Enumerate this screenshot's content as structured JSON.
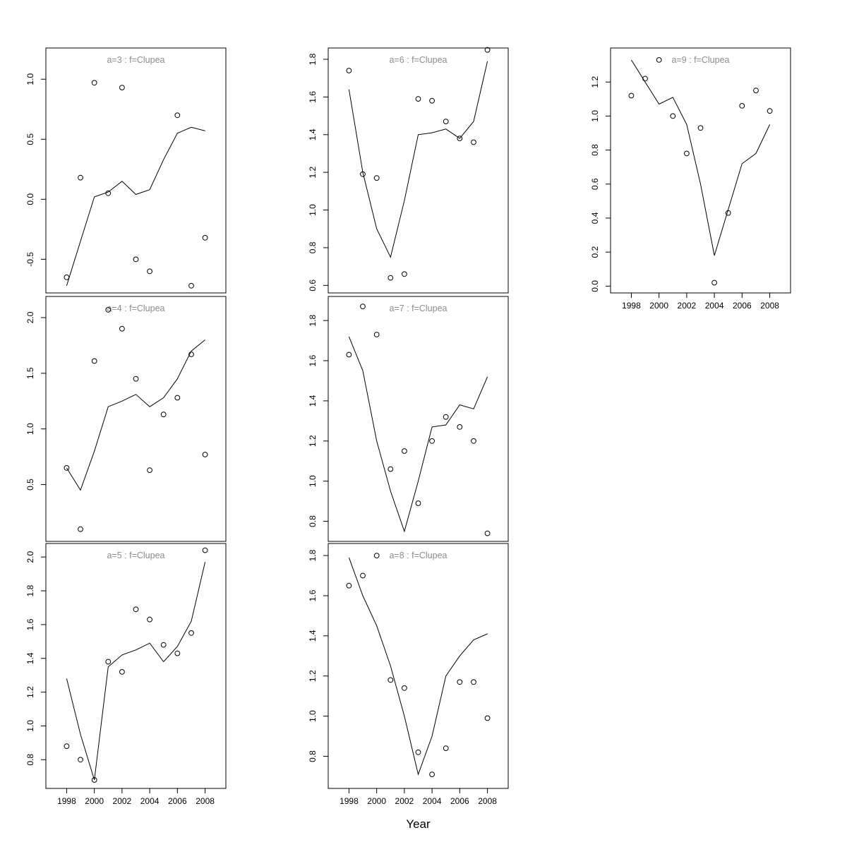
{
  "figure": {
    "xlabel": "Year",
    "title_color": "#8c8c8c",
    "axis_color": "#000000",
    "line_color": "#000000",
    "point_color": "#000000",
    "background": "#ffffff"
  },
  "chart_data": [
    {
      "id": "a3",
      "type": "scatter",
      "title": "a=3 : f=Clupea",
      "grid": {
        "row": 0,
        "col": 0
      },
      "x": [
        1998,
        1999,
        2000,
        2001,
        2002,
        2003,
        2004,
        2005,
        2006,
        2007,
        2008
      ],
      "series": [
        {
          "name": "observed",
          "style": "points",
          "values": [
            -0.65,
            0.18,
            0.97,
            0.05,
            0.93,
            -0.5,
            -0.6,
            null,
            0.7,
            -0.72,
            -0.32
          ]
        },
        {
          "name": "fitted",
          "style": "line",
          "values": [
            -0.72,
            -0.35,
            0.02,
            0.06,
            0.15,
            0.04,
            0.08,
            0.33,
            0.55,
            0.6,
            0.57
          ]
        }
      ],
      "ylim": [
        -0.78,
        1.26
      ],
      "yticks": [
        -0.5,
        0.0,
        0.5,
        1.0
      ],
      "xticks": [
        1998,
        2000,
        2002,
        2004,
        2006,
        2008
      ],
      "x_axis_labels": false
    },
    {
      "id": "a4",
      "type": "scatter",
      "title": "a=4 : f=Clupea",
      "grid": {
        "row": 1,
        "col": 0
      },
      "x": [
        1998,
        1999,
        2000,
        2001,
        2002,
        2003,
        2004,
        2005,
        2006,
        2007,
        2008
      ],
      "series": [
        {
          "name": "observed",
          "style": "points",
          "values": [
            0.65,
            0.1,
            1.61,
            2.07,
            1.9,
            1.45,
            0.63,
            1.13,
            1.28,
            1.67,
            0.77
          ]
        },
        {
          "name": "fitted",
          "style": "line",
          "values": [
            0.65,
            0.45,
            0.8,
            1.2,
            1.25,
            1.31,
            1.2,
            1.28,
            1.45,
            1.7,
            1.8
          ]
        }
      ],
      "ylim": [
        -0.01,
        2.19
      ],
      "yticks": [
        0.5,
        1.0,
        1.5,
        2.0
      ],
      "xticks": [
        1998,
        2000,
        2002,
        2004,
        2006,
        2008
      ],
      "x_axis_labels": false
    },
    {
      "id": "a5",
      "type": "scatter",
      "title": "a=5 : f=Clupea",
      "grid": {
        "row": 2,
        "col": 0
      },
      "x": [
        1998,
        1999,
        2000,
        2001,
        2002,
        2003,
        2004,
        2005,
        2006,
        2007,
        2008
      ],
      "series": [
        {
          "name": "observed",
          "style": "points",
          "values": [
            0.88,
            0.8,
            0.68,
            1.38,
            1.32,
            1.69,
            1.63,
            1.48,
            1.43,
            1.55,
            2.04
          ]
        },
        {
          "name": "fitted",
          "style": "line",
          "values": [
            1.28,
            0.95,
            0.68,
            1.35,
            1.42,
            1.45,
            1.49,
            1.38,
            1.47,
            1.62,
            1.97
          ]
        }
      ],
      "ylim": [
        0.63,
        2.08
      ],
      "yticks": [
        0.8,
        1.0,
        1.2,
        1.4,
        1.6,
        1.8,
        2.0
      ],
      "xticks": [
        1998,
        2000,
        2002,
        2004,
        2006,
        2008
      ],
      "x_axis_labels": true
    },
    {
      "id": "a6",
      "type": "scatter",
      "title": "a=6 : f=Clupea",
      "grid": {
        "row": 0,
        "col": 1
      },
      "x": [
        1998,
        1999,
        2000,
        2001,
        2002,
        2003,
        2004,
        2005,
        2006,
        2007,
        2008
      ],
      "series": [
        {
          "name": "observed",
          "style": "points",
          "values": [
            1.74,
            1.19,
            1.17,
            0.64,
            0.66,
            1.59,
            1.58,
            1.47,
            1.38,
            1.36,
            1.85
          ]
        },
        {
          "name": "fitted",
          "style": "line",
          "values": [
            1.64,
            1.2,
            0.9,
            0.75,
            1.05,
            1.4,
            1.41,
            1.43,
            1.38,
            1.47,
            1.79
          ]
        }
      ],
      "ylim": [
        0.56,
        1.86
      ],
      "yticks": [
        0.6,
        0.8,
        1.0,
        1.2,
        1.4,
        1.6,
        1.8
      ],
      "xticks": [
        1998,
        2000,
        2002,
        2004,
        2006,
        2008
      ],
      "x_axis_labels": false
    },
    {
      "id": "a7",
      "type": "scatter",
      "title": "a=7 : f=Clupea",
      "grid": {
        "row": 1,
        "col": 1
      },
      "x": [
        1998,
        1999,
        2000,
        2001,
        2002,
        2003,
        2004,
        2005,
        2006,
        2007,
        2008
      ],
      "series": [
        {
          "name": "observed",
          "style": "points",
          "values": [
            1.63,
            1.87,
            1.73,
            1.06,
            1.15,
            0.89,
            1.2,
            1.32,
            1.27,
            1.2,
            0.74
          ]
        },
        {
          "name": "fitted",
          "style": "line",
          "values": [
            1.72,
            1.55,
            1.2,
            0.95,
            0.75,
            1.0,
            1.27,
            1.28,
            1.38,
            1.36,
            1.52
          ]
        }
      ],
      "ylim": [
        0.7,
        1.92
      ],
      "yticks": [
        0.8,
        1.0,
        1.2,
        1.4,
        1.6,
        1.8
      ],
      "xticks": [
        1998,
        2000,
        2002,
        2004,
        2006,
        2008
      ],
      "x_axis_labels": false
    },
    {
      "id": "a8",
      "type": "scatter",
      "title": "a=8 : f=Clupea",
      "grid": {
        "row": 2,
        "col": 1
      },
      "x": [
        1998,
        1999,
        2000,
        2001,
        2002,
        2003,
        2004,
        2005,
        2006,
        2007,
        2008
      ],
      "series": [
        {
          "name": "observed",
          "style": "points",
          "values": [
            1.65,
            1.7,
            1.8,
            1.18,
            1.14,
            0.82,
            0.71,
            0.84,
            1.17,
            1.17,
            0.99
          ]
        },
        {
          "name": "fitted",
          "style": "line",
          "values": [
            1.79,
            1.6,
            1.45,
            1.25,
            1.0,
            0.71,
            0.9,
            1.2,
            1.3,
            1.38,
            1.41
          ]
        }
      ],
      "ylim": [
        0.64,
        1.86
      ],
      "yticks": [
        0.8,
        1.0,
        1.2,
        1.4,
        1.6,
        1.8
      ],
      "xticks": [
        1998,
        2000,
        2002,
        2004,
        2006,
        2008
      ],
      "x_axis_labels": true
    },
    {
      "id": "a9",
      "type": "scatter",
      "title": "a=9 : f=Clupea",
      "grid": {
        "row": 0,
        "col": 2
      },
      "x": [
        1998,
        1999,
        2000,
        2001,
        2002,
        2003,
        2004,
        2005,
        2006,
        2007,
        2008
      ],
      "series": [
        {
          "name": "observed",
          "style": "points",
          "values": [
            1.12,
            1.22,
            1.33,
            1.0,
            0.78,
            0.93,
            0.02,
            0.43,
            1.06,
            1.15,
            1.03
          ]
        },
        {
          "name": "fitted",
          "style": "line",
          "values": [
            1.33,
            1.2,
            1.07,
            1.11,
            0.95,
            0.6,
            0.18,
            0.45,
            0.72,
            0.78,
            0.95
          ]
        }
      ],
      "ylim": [
        -0.04,
        1.4
      ],
      "yticks": [
        0.0,
        0.2,
        0.4,
        0.6,
        0.8,
        1.0,
        1.2
      ],
      "xticks": [
        1998,
        2000,
        2002,
        2004,
        2006,
        2008
      ],
      "x_axis_labels": true
    }
  ]
}
